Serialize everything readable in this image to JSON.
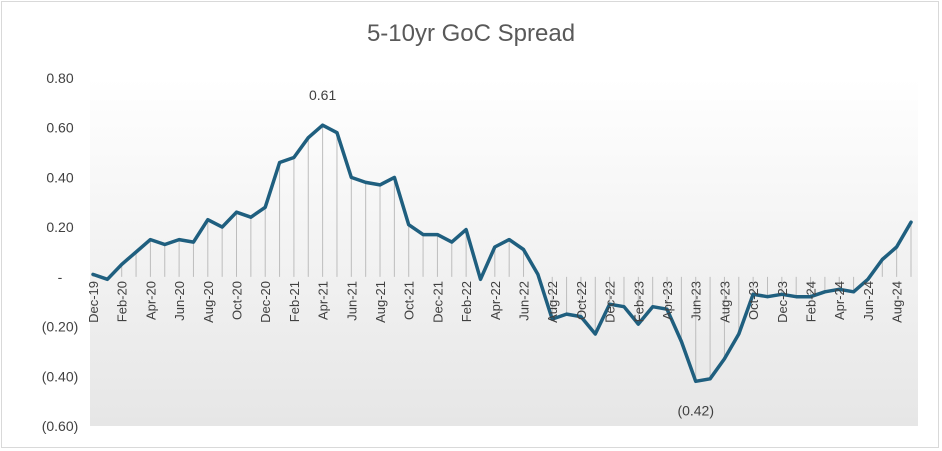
{
  "chart_data": {
    "type": "line",
    "title": "5-10yr GoC Spread",
    "xlabel": "",
    "ylabel": "",
    "ylim": [
      -0.6,
      0.8
    ],
    "yticks": [
      {
        "value": 0.8,
        "label": "0.80"
      },
      {
        "value": 0.6,
        "label": "0.60"
      },
      {
        "value": 0.4,
        "label": "0.40"
      },
      {
        "value": 0.2,
        "label": "0.20"
      },
      {
        "value": 0.0,
        "label": "-"
      },
      {
        "value": -0.2,
        "label": "(0.20)"
      },
      {
        "value": -0.4,
        "label": "(0.40)"
      },
      {
        "value": -0.6,
        "label": "(0.60)"
      }
    ],
    "tick_labels": [
      "Dec-19",
      "Feb-20",
      "Apr-20",
      "Jun-20",
      "Aug-20",
      "Oct-20",
      "Dec-20",
      "Feb-21",
      "Apr-21",
      "Jun-21",
      "Aug-21",
      "Oct-21",
      "Dec-21",
      "Feb-22",
      "Apr-22",
      "Jun-22",
      "Aug-22",
      "Oct-22",
      "Dec-22",
      "Feb-23",
      "Apr-23",
      "Jun-23",
      "Aug-23",
      "Oct-23",
      "Dec-23",
      "Feb-24",
      "Apr-24",
      "Jun-24",
      "Aug-24"
    ],
    "x": [
      "Dec-19",
      "Jan-20",
      "Feb-20",
      "Mar-20",
      "Apr-20",
      "May-20",
      "Jun-20",
      "Jul-20",
      "Aug-20",
      "Sep-20",
      "Oct-20",
      "Nov-20",
      "Dec-20",
      "Jan-21",
      "Feb-21",
      "Mar-21",
      "Apr-21",
      "May-21",
      "Jun-21",
      "Jul-21",
      "Aug-21",
      "Sep-21",
      "Oct-21",
      "Nov-21",
      "Dec-21",
      "Jan-22",
      "Feb-22",
      "Mar-22",
      "Apr-22",
      "May-22",
      "Jun-22",
      "Jul-22",
      "Aug-22",
      "Sep-22",
      "Oct-22",
      "Nov-22",
      "Dec-22",
      "Jan-23",
      "Feb-23",
      "Mar-23",
      "Apr-23",
      "May-23",
      "Jun-23",
      "Jul-23",
      "Aug-23",
      "Sep-23",
      "Oct-23",
      "Nov-23",
      "Dec-23",
      "Jan-24",
      "Feb-24",
      "Mar-24",
      "Apr-24",
      "May-24",
      "Jun-24",
      "Jul-24",
      "Aug-24",
      "Sep-24"
    ],
    "series": [
      {
        "values": [
          0.01,
          -0.01,
          0.05,
          0.1,
          0.15,
          0.13,
          0.15,
          0.14,
          0.23,
          0.2,
          0.26,
          0.24,
          0.28,
          0.46,
          0.48,
          0.56,
          0.61,
          0.58,
          0.4,
          0.38,
          0.37,
          0.4,
          0.21,
          0.17,
          0.17,
          0.14,
          0.19,
          -0.01,
          0.12,
          0.15,
          0.11,
          0.01,
          -0.17,
          -0.15,
          -0.16,
          -0.23,
          -0.11,
          -0.12,
          -0.19,
          -0.12,
          -0.13,
          -0.26,
          -0.42,
          -0.41,
          -0.33,
          -0.23,
          -0.07,
          -0.08,
          -0.07,
          -0.08,
          -0.08,
          -0.06,
          -0.05,
          -0.06,
          -0.01,
          0.07,
          0.12,
          0.22
        ],
        "color": "#1f5f7f"
      }
    ],
    "annotations": [
      {
        "index": 16,
        "label": "0.61",
        "position": "above"
      },
      {
        "index": 42,
        "label": "(0.42)",
        "position": "below"
      }
    ],
    "grid": false,
    "drop_lines": true,
    "legend": "none"
  }
}
